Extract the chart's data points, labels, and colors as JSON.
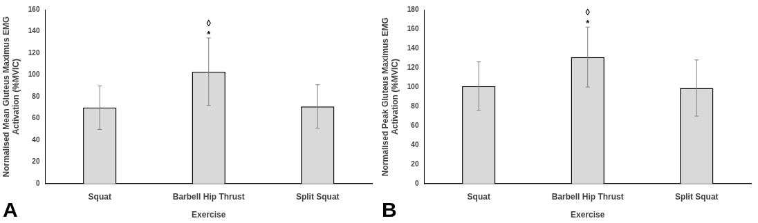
{
  "chart_data": [
    {
      "type": "bar",
      "xlabel": "Exercise",
      "ylabel": "Normalised Mean Gluteus Maximus EMG\nActivation (%MVIC)",
      "categories": [
        "Squat",
        "Barbell Hip Thrust",
        "Split Squat"
      ],
      "values": [
        70,
        103,
        71
      ],
      "errors": [
        [
          50,
          90
        ],
        [
          72,
          134
        ],
        [
          51,
          91
        ]
      ],
      "color": "#d9d9d9",
      "ylim": [
        0,
        160
      ],
      "yticks": [
        0,
        20,
        40,
        60,
        80,
        100,
        120,
        140,
        160
      ],
      "grid": false,
      "annotations": [
        "*",
        "◊",
        "A"
      ]
    },
    {
      "type": "bar",
      "xlabel": "Exercise",
      "ylabel": "Normalised Peak Gluteus Maximus EMG\nActivation (%MVIC)",
      "categories": [
        "Squat",
        "Barbell Hip Thrust",
        "Split Squat"
      ],
      "values": [
        101,
        131,
        99
      ],
      "errors": [
        [
          76,
          126
        ],
        [
          100,
          162
        ],
        [
          70,
          128
        ]
      ],
      "color": "#d9d9d9",
      "ylim": [
        0,
        180
      ],
      "yticks": [
        0,
        20,
        40,
        60,
        80,
        100,
        120,
        140,
        160,
        180
      ],
      "grid": false,
      "annotations": [
        "*",
        "◊",
        "B"
      ]
    }
  ]
}
